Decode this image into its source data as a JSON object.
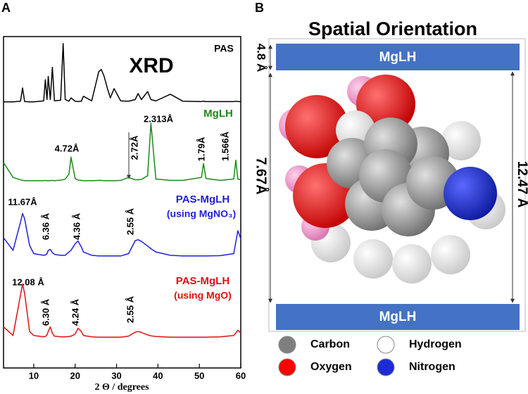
{
  "panel_labels": [
    "A",
    "B"
  ],
  "chart_data": {
    "type": "line",
    "xlabel": "2 Θ / degrees",
    "xlim": [
      2.7,
      60
    ],
    "xticks": [
      10,
      20,
      30,
      40,
      50,
      60
    ],
    "ylim": [
      0,
      100
    ],
    "x": [
      2.7,
      5,
      6.8,
      7.3,
      7.8,
      9,
      10,
      12.4,
      12.8,
      13.2,
      13.5,
      14,
      14.5,
      15,
      16.5,
      17.1,
      17.6,
      18.5,
      19,
      20,
      20.7,
      21.5,
      22,
      24,
      25.7,
      26.3,
      27,
      27.8,
      28.5,
      29.4,
      31,
      32.9,
      34.5,
      35.2,
      36,
      37.5,
      38.3,
      39.5,
      43,
      46,
      50.5,
      51,
      51.6,
      55,
      58.3,
      58.8,
      59.3,
      60
    ],
    "series": [
      {
        "name": "PAS",
        "color": "#000000",
        "values": [
          80.3,
          80.3,
          80.5,
          84.5,
          80.4,
          80.3,
          80.3,
          80.6,
          87,
          81,
          88,
          81,
          90.7,
          80.6,
          80.8,
          97.9,
          81,
          80.5,
          81.5,
          80.5,
          80.4,
          80.5,
          82,
          80.6,
          89.4,
          90.1,
          88,
          84.3,
          81.5,
          84.3,
          80.6,
          80.5,
          81,
          82.8,
          81,
          83.4,
          81,
          80.6,
          82.6,
          80.5,
          80.4,
          80.5,
          80.4,
          80.4,
          80.4,
          80.5,
          80.4,
          80.4
        ]
      },
      {
        "name": "MgLH",
        "color": "#1a8a1a",
        "values": [
          62,
          57.5,
          56.8,
          56.6,
          56.5,
          56.5,
          56.5,
          56.5,
          56.6,
          56.5,
          56.5,
          56.5,
          56.6,
          56.5,
          56.7,
          56.8,
          57,
          58.5,
          63.6,
          57.2,
          56.7,
          56.6,
          56.5,
          56.5,
          56.6,
          56.6,
          56.5,
          56.5,
          56.5,
          56.5,
          56.6,
          57.5,
          56.8,
          56.8,
          56.9,
          58,
          73.9,
          57,
          56.6,
          56.6,
          57.5,
          61.7,
          57.2,
          56.6,
          57,
          62.7,
          57,
          56.8
        ]
      },
      {
        "name": "PAS-MgLH",
        "color": "#1f1fe0",
        "values": [
          39.3,
          35.5,
          44,
          46.6,
          45,
          37,
          34.5,
          34,
          34.1,
          34.5,
          35.5,
          35.8,
          34.8,
          34.3,
          34,
          34,
          34,
          35,
          35.5,
          37.5,
          38.3,
          36.5,
          35,
          34,
          33.8,
          33.8,
          33.8,
          33.8,
          33.8,
          33.8,
          33.8,
          34.5,
          38.4,
          38.7,
          38.2,
          36.8,
          36,
          35,
          34,
          33.8,
          33.8,
          33.8,
          33.8,
          33.9,
          34.5,
          38,
          41.4,
          39
        ]
      },
      {
        "name": "PAS-MgLH",
        "color": "#e01010",
        "values": [
          12.4,
          9.8,
          22,
          25.3,
          22.5,
          11,
          9.8,
          9.4,
          9.5,
          10,
          11,
          12.4,
          10.5,
          9.6,
          9.4,
          9.4,
          9.4,
          9.5,
          9.6,
          10.2,
          12,
          11,
          9.8,
          9.4,
          9.3,
          9.3,
          9.3,
          9.3,
          9.3,
          9.3,
          9.3,
          9.6,
          10.8,
          11,
          10.7,
          10,
          9.7,
          9.5,
          9.3,
          9.3,
          9.3,
          9.3,
          9.3,
          9.4,
          9.8,
          10.5,
          11.4,
          10.5
        ]
      }
    ],
    "annotations": [
      "XRD",
      "(using MgNO₃)",
      "(using MgO)"
    ],
    "peak_labels": [
      "2.313Å",
      "4.72Å",
      "2.72Å",
      "1.79Å",
      "1.566Å",
      "11.67Å",
      "6.36 Å",
      "4.36 Å",
      "2.55 Å",
      "12.08 Å",
      "6.30 Å",
      "4.24 Å",
      "2.55 Å"
    ]
  },
  "orientation": {
    "title": "Spatial Orientation",
    "layer_labels": [
      "MgLH",
      "MgLH"
    ],
    "dimensions": [
      "4.8 Å",
      "7.67Å",
      "12.47 Å"
    ],
    "legend": [
      {
        "label": "Carbon",
        "color": "#7f7f7f"
      },
      {
        "label": "Hydrogen",
        "color": "#ffffff"
      },
      {
        "label": "Oxygen",
        "color": "#ff0000"
      },
      {
        "label": "Nitrogen",
        "color": "#1c2bd6"
      }
    ]
  }
}
